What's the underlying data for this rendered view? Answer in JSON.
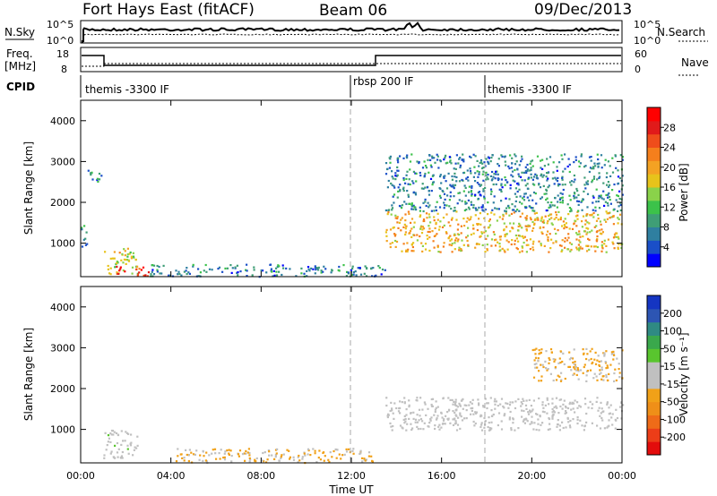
{
  "header": {
    "title": "Fort Hays East (fitACF)",
    "beam": "Beam 06",
    "date": "09/Dec/2013"
  },
  "panels": {
    "nsky_label": "N.Sky",
    "nsky_ticks": [
      "10^5",
      "10^0"
    ],
    "nsearch_label": "N.Search",
    "nsearch_ticks": [
      "10^5",
      "10^0"
    ],
    "freq_label": "Freq.",
    "freq_unit": "[MHz]",
    "freq_ticks": [
      "18",
      "8"
    ],
    "nave_label": "Nave",
    "nave_ticks": [
      "60",
      "0"
    ],
    "cpid_label": "CPID",
    "cpid_segments": [
      {
        "name": "themis -3300 IF",
        "start_hour": 0
      },
      {
        "name": "rbsp 200 IF",
        "start_hour": 12
      },
      {
        "name": "themis -3300 IF",
        "start_hour": 18
      }
    ]
  },
  "colorbars": {
    "power": {
      "label": "Power [dB]",
      "ticks": [
        "28",
        "24",
        "20",
        "16",
        "12",
        "8",
        "4"
      ],
      "colors": [
        "#0000ff",
        "#1a4fc8",
        "#2f7fa0",
        "#3f9e76",
        "#3cc24a",
        "#8ad24a",
        "#e7c31b",
        "#f4a223",
        "#f57f1c",
        "#ef4d1b",
        "#e11a1a",
        "#ff0000"
      ]
    },
    "velocity": {
      "label": "Velocity [m s⁻¹]",
      "ticks": [
        "200",
        "100",
        "50",
        "15",
        "-15",
        "-50",
        "-100",
        "-200"
      ],
      "colors": [
        "#1535c2",
        "#2d55b3",
        "#2f8a83",
        "#3aa84c",
        "#59c52e",
        "#c0c0c0",
        "#c0c0c0",
        "#f1a118",
        "#ef8f18",
        "#ef6b18",
        "#ec3d18",
        "#e30c0c"
      ]
    }
  },
  "xaxis": {
    "label": "Time UT",
    "ticks": [
      "00:00",
      "04:00",
      "08:00",
      "12:00",
      "16:00",
      "20:00",
      "00:00"
    ]
  },
  "yaxis": {
    "label": "Slant Range [km]",
    "ticks": [
      "1000",
      "2000",
      "3000",
      "4000"
    ]
  },
  "chart_data": {
    "type": "heatmap",
    "title": "Fort Hays East (fitACF)",
    "xlabel": "Time UT",
    "ylabel": "Slant Range [km]",
    "xlim": [
      0,
      24
    ],
    "ylim": [
      180,
      4500
    ],
    "vertical_markers_hours": [
      12,
      18
    ],
    "power_db": [
      {
        "hours": [
          0.0,
          0.3
        ],
        "range_km": [
          900,
          1500
        ],
        "value": 8
      },
      {
        "hours": [
          0.3,
          0.9
        ],
        "range_km": [
          2400,
          2800
        ],
        "value": 6
      },
      {
        "hours": [
          1.0,
          2.5
        ],
        "range_km": [
          250,
          900
        ],
        "value": 16
      },
      {
        "hours": [
          1.5,
          3.0
        ],
        "range_km": [
          200,
          450
        ],
        "value": 28
      },
      {
        "hours": [
          3.0,
          13.5
        ],
        "range_km": [
          200,
          500
        ],
        "value": 6
      },
      {
        "hours": [
          13.5,
          24.0
        ],
        "range_km": [
          800,
          1800
        ],
        "value": 18
      },
      {
        "hours": [
          13.5,
          24.0
        ],
        "range_km": [
          1800,
          3200
        ],
        "value": 6
      }
    ],
    "velocity_ms": [
      {
        "hours": [
          1.0,
          2.5
        ],
        "range_km": [
          300,
          1000
        ],
        "value": 20
      },
      {
        "hours": [
          4.0,
          13.0
        ],
        "range_km": [
          200,
          550
        ],
        "value": -40
      },
      {
        "hours": [
          13.5,
          24.0
        ],
        "range_km": [
          1000,
          1800
        ],
        "value": 0
      },
      {
        "hours": [
          20.0,
          24.0
        ],
        "range_km": [
          2200,
          3000
        ],
        "value": -40
      }
    ]
  }
}
